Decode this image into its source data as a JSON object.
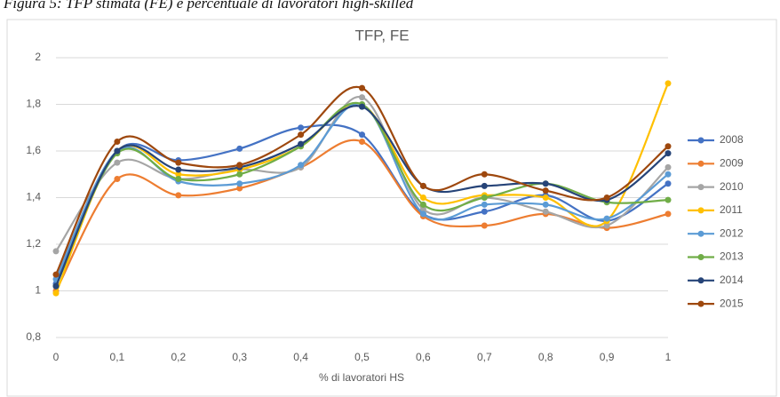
{
  "caption": "Figura 5: TFP stimata (FE) e percentuale di lavoratori high-skilled",
  "chart_data": {
    "type": "line",
    "title": "TFP, FE",
    "x_label": "% di lavoratori HS",
    "smooth": true,
    "grid": true,
    "legend": "right",
    "x": [
      0,
      0.1,
      0.2,
      0.3,
      0.4,
      0.5,
      0.6,
      0.7,
      0.8,
      0.9,
      1
    ],
    "xlim": [
      0,
      1
    ],
    "xticks": [
      0,
      {
        "value": 0.1,
        "label": "0,1"
      },
      {
        "value": 0.2,
        "label": "0,2"
      },
      {
        "value": 0.3,
        "label": "0,3"
      },
      {
        "value": 0.4,
        "label": "0,4"
      },
      {
        "value": 0.5,
        "label": "0,5"
      },
      {
        "value": 0.6,
        "label": "0,6"
      },
      {
        "value": 0.7,
        "label": "0,7"
      },
      {
        "value": 0.8,
        "label": "0,8"
      },
      {
        "value": 0.9,
        "label": "0,9"
      },
      1
    ],
    "ylim": [
      0.8,
      2
    ],
    "yticks": [
      {
        "value": 0.8,
        "label": "0,8"
      },
      1,
      {
        "value": 1.2,
        "label": "1,2"
      },
      {
        "value": 1.4,
        "label": "1,4"
      },
      {
        "value": 1.6,
        "label": "1,6"
      },
      {
        "value": 1.8,
        "label": "1,8"
      },
      2
    ],
    "series": [
      {
        "name": "2008",
        "color": "#4472c4",
        "values": [
          1.03,
          1.6,
          1.56,
          1.61,
          1.7,
          1.67,
          1.33,
          1.34,
          1.41,
          1.3,
          1.46
        ]
      },
      {
        "name": "2009",
        "color": "#ed7d31",
        "values": [
          1.0,
          1.48,
          1.41,
          1.44,
          1.53,
          1.64,
          1.32,
          1.28,
          1.33,
          1.27,
          1.33
        ]
      },
      {
        "name": "2010",
        "color": "#a5a5a5",
        "values": [
          1.17,
          1.55,
          1.48,
          1.52,
          1.53,
          1.83,
          1.35,
          1.4,
          1.34,
          1.28,
          1.53
        ]
      },
      {
        "name": "2011",
        "color": "#ffc000",
        "values": [
          0.99,
          1.6,
          1.5,
          1.52,
          1.62,
          1.8,
          1.4,
          1.41,
          1.4,
          1.3,
          1.89
        ]
      },
      {
        "name": "2012",
        "color": "#5b9bd5",
        "values": [
          1.05,
          1.6,
          1.47,
          1.46,
          1.54,
          1.8,
          1.33,
          1.37,
          1.37,
          1.31,
          1.5
        ]
      },
      {
        "name": "2013",
        "color": "#70ad47",
        "values": [
          1.02,
          1.59,
          1.48,
          1.5,
          1.62,
          1.8,
          1.37,
          1.4,
          1.46,
          1.38,
          1.39
        ]
      },
      {
        "name": "2014",
        "color": "#264478",
        "values": [
          1.02,
          1.6,
          1.52,
          1.53,
          1.63,
          1.79,
          1.45,
          1.45,
          1.46,
          1.39,
          1.59
        ]
      },
      {
        "name": "2015",
        "color": "#9e480e",
        "values": [
          1.07,
          1.64,
          1.55,
          1.54,
          1.67,
          1.87,
          1.45,
          1.5,
          1.43,
          1.4,
          1.62
        ]
      }
    ]
  }
}
